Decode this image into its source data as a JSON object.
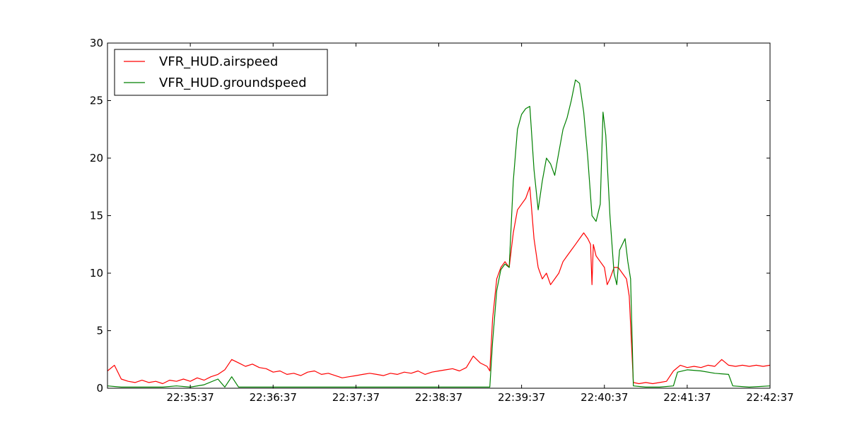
{
  "chart_data": {
    "type": "line",
    "title": "",
    "xlabel": "",
    "ylabel": "",
    "xlim": [
      "22:34:37",
      "22:42:37"
    ],
    "ylim": [
      0,
      30
    ],
    "yticks": [
      0,
      5,
      10,
      15,
      20,
      25,
      30
    ],
    "xticks": [
      "22:35:37",
      "22:36:37",
      "22:37:37",
      "22:38:37",
      "22:39:37",
      "22:40:37",
      "22:41:37",
      "22:42:37"
    ],
    "grid": false,
    "legend": "top-left",
    "series": [
      {
        "name": "VFR_HUD.airspeed",
        "color": "#ff0000",
        "points": [
          [
            "22:34:37",
            1.5
          ],
          [
            "22:34:42",
            2.0
          ],
          [
            "22:34:47",
            0.8
          ],
          [
            "22:34:52",
            0.6
          ],
          [
            "22:34:57",
            0.5
          ],
          [
            "22:35:02",
            0.7
          ],
          [
            "22:35:07",
            0.5
          ],
          [
            "22:35:12",
            0.6
          ],
          [
            "22:35:17",
            0.4
          ],
          [
            "22:35:22",
            0.7
          ],
          [
            "22:35:27",
            0.6
          ],
          [
            "22:35:32",
            0.8
          ],
          [
            "22:35:37",
            0.6
          ],
          [
            "22:35:42",
            0.9
          ],
          [
            "22:35:47",
            0.7
          ],
          [
            "22:35:52",
            1.0
          ],
          [
            "22:35:57",
            1.2
          ],
          [
            "22:36:02",
            1.6
          ],
          [
            "22:36:07",
            2.5
          ],
          [
            "22:36:12",
            2.2
          ],
          [
            "22:36:17",
            1.9
          ],
          [
            "22:36:22",
            2.1
          ],
          [
            "22:36:27",
            1.8
          ],
          [
            "22:36:32",
            1.7
          ],
          [
            "22:36:37",
            1.4
          ],
          [
            "22:36:42",
            1.5
          ],
          [
            "22:36:47",
            1.2
          ],
          [
            "22:36:52",
            1.3
          ],
          [
            "22:36:57",
            1.1
          ],
          [
            "22:37:02",
            1.4
          ],
          [
            "22:37:07",
            1.5
          ],
          [
            "22:37:12",
            1.2
          ],
          [
            "22:37:17",
            1.3
          ],
          [
            "22:37:22",
            1.1
          ],
          [
            "22:37:27",
            0.9
          ],
          [
            "22:37:32",
            1.0
          ],
          [
            "22:37:37",
            1.1
          ],
          [
            "22:37:42",
            1.2
          ],
          [
            "22:37:47",
            1.3
          ],
          [
            "22:37:52",
            1.2
          ],
          [
            "22:37:57",
            1.1
          ],
          [
            "22:38:02",
            1.3
          ],
          [
            "22:38:07",
            1.2
          ],
          [
            "22:38:12",
            1.4
          ],
          [
            "22:38:17",
            1.3
          ],
          [
            "22:38:22",
            1.5
          ],
          [
            "22:38:27",
            1.2
          ],
          [
            "22:38:32",
            1.4
          ],
          [
            "22:38:37",
            1.5
          ],
          [
            "22:38:42",
            1.6
          ],
          [
            "22:38:47",
            1.7
          ],
          [
            "22:38:52",
            1.5
          ],
          [
            "22:38:57",
            1.8
          ],
          [
            "22:39:02",
            2.8
          ],
          [
            "22:39:07",
            2.2
          ],
          [
            "22:39:12",
            1.9
          ],
          [
            "22:39:14",
            1.5
          ],
          [
            "22:39:16",
            6.0
          ],
          [
            "22:39:19",
            9.5
          ],
          [
            "22:39:22",
            10.5
          ],
          [
            "22:39:25",
            11.0
          ],
          [
            "22:39:28",
            10.5
          ],
          [
            "22:39:31",
            13.5
          ],
          [
            "22:39:34",
            15.5
          ],
          [
            "22:39:37",
            16.0
          ],
          [
            "22:39:40",
            16.5
          ],
          [
            "22:39:43",
            17.5
          ],
          [
            "22:39:46",
            13.0
          ],
          [
            "22:39:49",
            10.5
          ],
          [
            "22:39:52",
            9.5
          ],
          [
            "22:39:55",
            10.0
          ],
          [
            "22:39:58",
            9.0
          ],
          [
            "22:40:01",
            9.5
          ],
          [
            "22:40:04",
            10.0
          ],
          [
            "22:40:07",
            11.0
          ],
          [
            "22:40:10",
            11.5
          ],
          [
            "22:40:13",
            12.0
          ],
          [
            "22:40:16",
            12.5
          ],
          [
            "22:40:19",
            13.0
          ],
          [
            "22:40:22",
            13.5
          ],
          [
            "22:40:25",
            13.0
          ],
          [
            "22:40:27",
            12.5
          ],
          [
            "22:40:28",
            9.0
          ],
          [
            "22:40:29",
            12.5
          ],
          [
            "22:40:31",
            11.5
          ],
          [
            "22:40:34",
            11.0
          ],
          [
            "22:40:37",
            10.5
          ],
          [
            "22:40:39",
            9.0
          ],
          [
            "22:40:41",
            9.5
          ],
          [
            "22:40:44",
            10.5
          ],
          [
            "22:40:47",
            10.5
          ],
          [
            "22:40:50",
            10.0
          ],
          [
            "22:40:53",
            9.5
          ],
          [
            "22:40:55",
            8.0
          ],
          [
            "22:40:58",
            0.5
          ],
          [
            "22:41:02",
            0.4
          ],
          [
            "22:41:07",
            0.5
          ],
          [
            "22:41:12",
            0.4
          ],
          [
            "22:41:17",
            0.5
          ],
          [
            "22:41:22",
            0.6
          ],
          [
            "22:41:27",
            1.5
          ],
          [
            "22:41:32",
            2.0
          ],
          [
            "22:41:37",
            1.8
          ],
          [
            "22:41:42",
            1.9
          ],
          [
            "22:41:47",
            1.8
          ],
          [
            "22:41:52",
            2.0
          ],
          [
            "22:41:57",
            1.9
          ],
          [
            "22:42:02",
            2.5
          ],
          [
            "22:42:07",
            2.0
          ],
          [
            "22:42:12",
            1.9
          ],
          [
            "22:42:17",
            2.0
          ],
          [
            "22:42:22",
            1.9
          ],
          [
            "22:42:27",
            2.0
          ],
          [
            "22:42:32",
            1.9
          ],
          [
            "22:42:37",
            2.0
          ]
        ]
      },
      {
        "name": "VFR_HUD.groundspeed",
        "color": "#008000",
        "points": [
          [
            "22:34:37",
            0.2
          ],
          [
            "22:34:47",
            0.1
          ],
          [
            "22:34:57",
            0.1
          ],
          [
            "22:35:07",
            0.1
          ],
          [
            "22:35:17",
            0.1
          ],
          [
            "22:35:27",
            0.2
          ],
          [
            "22:35:37",
            0.1
          ],
          [
            "22:35:47",
            0.3
          ],
          [
            "22:35:57",
            0.8
          ],
          [
            "22:36:02",
            0.1
          ],
          [
            "22:36:07",
            1.0
          ],
          [
            "22:36:12",
            0.1
          ],
          [
            "22:36:22",
            0.1
          ],
          [
            "22:36:37",
            0.1
          ],
          [
            "22:36:57",
            0.1
          ],
          [
            "22:37:17",
            0.1
          ],
          [
            "22:37:37",
            0.1
          ],
          [
            "22:37:57",
            0.1
          ],
          [
            "22:38:17",
            0.1
          ],
          [
            "22:38:37",
            0.1
          ],
          [
            "22:38:57",
            0.1
          ],
          [
            "22:39:07",
            0.1
          ],
          [
            "22:39:14",
            0.1
          ],
          [
            "22:39:16",
            4.0
          ],
          [
            "22:39:19",
            8.5
          ],
          [
            "22:39:22",
            10.3
          ],
          [
            "22:39:25",
            10.8
          ],
          [
            "22:39:28",
            10.5
          ],
          [
            "22:39:31",
            18.0
          ],
          [
            "22:39:34",
            22.5
          ],
          [
            "22:39:37",
            23.8
          ],
          [
            "22:39:40",
            24.3
          ],
          [
            "22:39:43",
            24.5
          ],
          [
            "22:39:46",
            19.0
          ],
          [
            "22:39:49",
            15.5
          ],
          [
            "22:39:52",
            18.0
          ],
          [
            "22:39:55",
            20.0
          ],
          [
            "22:39:58",
            19.5
          ],
          [
            "22:40:01",
            18.5
          ],
          [
            "22:40:04",
            20.5
          ],
          [
            "22:40:07",
            22.5
          ],
          [
            "22:40:10",
            23.5
          ],
          [
            "22:40:13",
            25.0
          ],
          [
            "22:40:16",
            26.8
          ],
          [
            "22:40:19",
            26.5
          ],
          [
            "22:40:22",
            24.0
          ],
          [
            "22:40:25",
            20.0
          ],
          [
            "22:40:28",
            15.0
          ],
          [
            "22:40:31",
            14.5
          ],
          [
            "22:40:34",
            16.0
          ],
          [
            "22:40:36",
            24.0
          ],
          [
            "22:40:38",
            22.0
          ],
          [
            "22:40:41",
            15.0
          ],
          [
            "22:40:44",
            10.0
          ],
          [
            "22:40:46",
            9.0
          ],
          [
            "22:40:48",
            12.0
          ],
          [
            "22:40:50",
            12.5
          ],
          [
            "22:40:52",
            13.0
          ],
          [
            "22:40:54",
            11.0
          ],
          [
            "22:40:56",
            9.5
          ],
          [
            "22:40:58",
            0.2
          ],
          [
            "22:41:07",
            0.1
          ],
          [
            "22:41:17",
            0.1
          ],
          [
            "22:41:27",
            0.2
          ],
          [
            "22:41:30",
            1.4
          ],
          [
            "22:41:37",
            1.6
          ],
          [
            "22:41:47",
            1.5
          ],
          [
            "22:41:57",
            1.3
          ],
          [
            "22:42:07",
            1.2
          ],
          [
            "22:42:10",
            0.2
          ],
          [
            "22:42:22",
            0.1
          ],
          [
            "22:42:37",
            0.2
          ]
        ]
      }
    ]
  }
}
